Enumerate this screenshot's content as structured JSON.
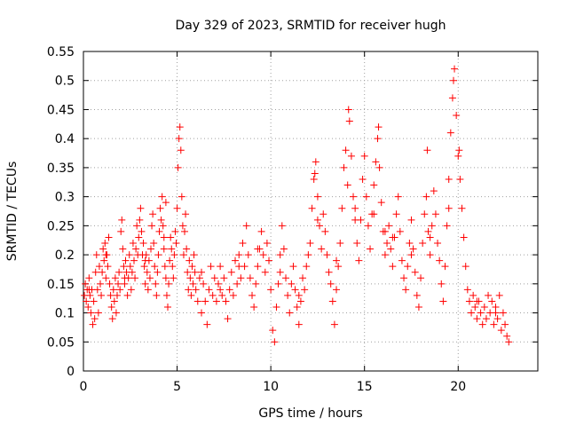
{
  "chart_data": {
    "type": "scatter",
    "title": "Day 329 of 2023, SRMTID for receiver hugh",
    "xlabel": "GPS time / hours",
    "ylabel": "SRMTID / TECUs",
    "xlim": [
      0,
      24.25
    ],
    "ylim": [
      0,
      0.55
    ],
    "xticks": [
      0,
      5,
      10,
      15,
      20
    ],
    "xtick_labels": [
      "0",
      "5",
      "10",
      "15",
      "20"
    ],
    "yticks": [
      0,
      0.05,
      0.1,
      0.15,
      0.2,
      0.25,
      0.3,
      0.35,
      0.4,
      0.45,
      0.5,
      0.55
    ],
    "ytick_labels": [
      "0",
      "0.05",
      "0.1",
      "0.15",
      "0.2",
      "0.25",
      "0.3",
      "0.35",
      "0.4",
      "0.45",
      "0.5",
      "0.55"
    ],
    "grid": true,
    "marker": "+",
    "marker_color": "#ff0000",
    "series": [
      {
        "name": "SRMTID",
        "points": [
          [
            0.05,
            0.13
          ],
          [
            0.1,
            0.15
          ],
          [
            0.15,
            0.12
          ],
          [
            0.2,
            0.14
          ],
          [
            0.25,
            0.11
          ],
          [
            0.3,
            0.16
          ],
          [
            0.35,
            0.13
          ],
          [
            0.4,
            0.1
          ],
          [
            0.45,
            0.14
          ],
          [
            0.5,
            0.08
          ],
          [
            0.55,
            0.12
          ],
          [
            0.6,
            0.09
          ],
          [
            0.65,
            0.17
          ],
          [
            0.7,
            0.2
          ],
          [
            0.75,
            0.14
          ],
          [
            0.8,
            0.1
          ],
          [
            0.85,
            0.18
          ],
          [
            0.9,
            0.15
          ],
          [
            0.95,
            0.13
          ],
          [
            1.0,
            0.17
          ],
          [
            1.05,
            0.21
          ],
          [
            1.1,
            0.19
          ],
          [
            1.15,
            0.22
          ],
          [
            1.2,
            0.16
          ],
          [
            1.25,
            0.2
          ],
          [
            1.3,
            0.18
          ],
          [
            1.35,
            0.23
          ],
          [
            1.4,
            0.15
          ],
          [
            1.45,
            0.13
          ],
          [
            1.5,
            0.11
          ],
          [
            1.55,
            0.09
          ],
          [
            1.6,
            0.14
          ],
          [
            1.65,
            0.12
          ],
          [
            1.7,
            0.16
          ],
          [
            1.75,
            0.1
          ],
          [
            1.8,
            0.13
          ],
          [
            1.85,
            0.15
          ],
          [
            1.9,
            0.17
          ],
          [
            1.95,
            0.14
          ],
          [
            2.0,
            0.24
          ],
          [
            2.05,
            0.26
          ],
          [
            2.1,
            0.21
          ],
          [
            2.15,
            0.18
          ],
          [
            2.2,
            0.15
          ],
          [
            2.25,
            0.19
          ],
          [
            2.3,
            0.17
          ],
          [
            2.35,
            0.13
          ],
          [
            2.4,
            0.16
          ],
          [
            2.45,
            0.2
          ],
          [
            2.5,
            0.18
          ],
          [
            2.55,
            0.14
          ],
          [
            2.6,
            0.17
          ],
          [
            2.65,
            0.22
          ],
          [
            2.7,
            0.19
          ],
          [
            2.75,
            0.16
          ],
          [
            2.8,
            0.21
          ],
          [
            2.85,
            0.25
          ],
          [
            2.9,
            0.2
          ],
          [
            2.95,
            0.23
          ],
          [
            3.0,
            0.26
          ],
          [
            3.05,
            0.28
          ],
          [
            3.1,
            0.24
          ],
          [
            3.15,
            0.2
          ],
          [
            3.2,
            0.22
          ],
          [
            3.25,
            0.18
          ],
          [
            3.3,
            0.15
          ],
          [
            3.35,
            0.2
          ],
          [
            3.4,
            0.17
          ],
          [
            3.45,
            0.14
          ],
          [
            3.5,
            0.19
          ],
          [
            3.55,
            0.16
          ],
          [
            3.6,
            0.21
          ],
          [
            3.65,
            0.25
          ],
          [
            3.7,
            0.27
          ],
          [
            3.75,
            0.22
          ],
          [
            3.8,
            0.18
          ],
          [
            3.85,
            0.15
          ],
          [
            3.9,
            0.13
          ],
          [
            3.95,
            0.17
          ],
          [
            4.0,
            0.2
          ],
          [
            4.05,
            0.24
          ],
          [
            4.1,
            0.28
          ],
          [
            4.15,
            0.26
          ],
          [
            4.2,
            0.3
          ],
          [
            4.25,
            0.25
          ],
          [
            4.3,
            0.21
          ],
          [
            4.35,
            0.18
          ],
          [
            4.4,
            0.16
          ],
          [
            4.45,
            0.13
          ],
          [
            4.5,
            0.11
          ],
          [
            4.55,
            0.15
          ],
          [
            4.6,
            0.19
          ],
          [
            4.65,
            0.23
          ],
          [
            4.7,
            0.21
          ],
          [
            4.75,
            0.18
          ],
          [
            4.8,
            0.16
          ],
          [
            4.85,
            0.2
          ],
          [
            4.9,
            0.24
          ],
          [
            4.95,
            0.22
          ],
          [
            5.0,
            0.28
          ],
          [
            5.05,
            0.35
          ],
          [
            5.1,
            0.4
          ],
          [
            5.15,
            0.42
          ],
          [
            5.2,
            0.38
          ],
          [
            5.25,
            0.3
          ],
          [
            5.3,
            0.25
          ],
          [
            5.35,
            0.2
          ],
          [
            5.4,
            0.24
          ],
          [
            5.45,
            0.27
          ],
          [
            5.5,
            0.21
          ],
          [
            5.55,
            0.17
          ],
          [
            5.6,
            0.14
          ],
          [
            5.65,
            0.19
          ],
          [
            5.7,
            0.16
          ],
          [
            5.75,
            0.13
          ],
          [
            5.8,
            0.18
          ],
          [
            5.85,
            0.15
          ],
          [
            5.9,
            0.2
          ],
          [
            5.95,
            0.17
          ],
          [
            6.0,
            0.14
          ],
          [
            6.1,
            0.12
          ],
          [
            6.2,
            0.16
          ],
          [
            6.3,
            0.1
          ],
          [
            6.4,
            0.15
          ],
          [
            6.5,
            0.12
          ],
          [
            6.6,
            0.08
          ],
          [
            6.7,
            0.14
          ],
          [
            6.8,
            0.18
          ],
          [
            6.9,
            0.13
          ],
          [
            7.0,
            0.16
          ],
          [
            7.1,
            0.12
          ],
          [
            7.2,
            0.15
          ],
          [
            7.3,
            0.18
          ],
          [
            7.4,
            0.13
          ],
          [
            7.5,
            0.16
          ],
          [
            7.6,
            0.12
          ],
          [
            7.7,
            0.09
          ],
          [
            7.8,
            0.14
          ],
          [
            7.9,
            0.17
          ],
          [
            8.0,
            0.13
          ],
          [
            8.1,
            0.19
          ],
          [
            8.2,
            0.15
          ],
          [
            8.3,
            0.2
          ],
          [
            8.4,
            0.16
          ],
          [
            8.5,
            0.22
          ],
          [
            8.6,
            0.18
          ],
          [
            8.7,
            0.25
          ],
          [
            8.8,
            0.2
          ],
          [
            8.9,
            0.16
          ],
          [
            9.0,
            0.13
          ],
          [
            9.1,
            0.11
          ],
          [
            9.2,
            0.15
          ],
          [
            9.3,
            0.18
          ],
          [
            9.4,
            0.21
          ],
          [
            9.5,
            0.24
          ],
          [
            9.6,
            0.2
          ],
          [
            9.7,
            0.17
          ],
          [
            9.8,
            0.22
          ],
          [
            9.9,
            0.19
          ],
          [
            10.0,
            0.14
          ],
          [
            10.1,
            0.07
          ],
          [
            10.2,
            0.05
          ],
          [
            10.3,
            0.11
          ],
          [
            10.4,
            0.15
          ],
          [
            10.5,
            0.2
          ],
          [
            10.6,
            0.25
          ],
          [
            10.7,
            0.21
          ],
          [
            10.8,
            0.16
          ],
          [
            10.9,
            0.13
          ],
          [
            11.0,
            0.1
          ],
          [
            11.1,
            0.15
          ],
          [
            11.2,
            0.18
          ],
          [
            11.3,
            0.14
          ],
          [
            11.4,
            0.11
          ],
          [
            11.5,
            0.08
          ],
          [
            11.6,
            0.12
          ],
          [
            11.7,
            0.16
          ],
          [
            11.8,
            0.14
          ],
          [
            11.9,
            0.18
          ],
          [
            12.0,
            0.2
          ],
          [
            12.1,
            0.22
          ],
          [
            12.2,
            0.28
          ],
          [
            12.3,
            0.33
          ],
          [
            12.4,
            0.36
          ],
          [
            12.5,
            0.3
          ],
          [
            12.6,
            0.25
          ],
          [
            12.7,
            0.21
          ],
          [
            12.8,
            0.27
          ],
          [
            12.9,
            0.24
          ],
          [
            13.0,
            0.2
          ],
          [
            13.1,
            0.17
          ],
          [
            13.2,
            0.15
          ],
          [
            13.3,
            0.12
          ],
          [
            13.4,
            0.08
          ],
          [
            13.5,
            0.14
          ],
          [
            13.6,
            0.18
          ],
          [
            13.7,
            0.22
          ],
          [
            13.8,
            0.28
          ],
          [
            13.9,
            0.35
          ],
          [
            14.0,
            0.38
          ],
          [
            14.1,
            0.32
          ],
          [
            14.2,
            0.43
          ],
          [
            14.3,
            0.37
          ],
          [
            14.4,
            0.3
          ],
          [
            14.5,
            0.26
          ],
          [
            14.6,
            0.22
          ],
          [
            14.7,
            0.19
          ],
          [
            14.8,
            0.26
          ],
          [
            14.9,
            0.33
          ],
          [
            15.0,
            0.37
          ],
          [
            15.1,
            0.3
          ],
          [
            15.2,
            0.25
          ],
          [
            15.3,
            0.21
          ],
          [
            15.4,
            0.27
          ],
          [
            15.5,
            0.32
          ],
          [
            15.6,
            0.36
          ],
          [
            15.7,
            0.4
          ],
          [
            15.8,
            0.35
          ],
          [
            15.9,
            0.29
          ],
          [
            16.0,
            0.24
          ],
          [
            16.1,
            0.2
          ],
          [
            16.2,
            0.22
          ],
          [
            16.3,
            0.25
          ],
          [
            16.4,
            0.21
          ],
          [
            16.5,
            0.18
          ],
          [
            16.6,
            0.23
          ],
          [
            16.7,
            0.27
          ],
          [
            16.8,
            0.3
          ],
          [
            16.9,
            0.24
          ],
          [
            17.0,
            0.19
          ],
          [
            17.1,
            0.16
          ],
          [
            17.2,
            0.14
          ],
          [
            17.3,
            0.18
          ],
          [
            17.4,
            0.22
          ],
          [
            17.5,
            0.26
          ],
          [
            17.6,
            0.21
          ],
          [
            17.7,
            0.17
          ],
          [
            17.8,
            0.13
          ],
          [
            17.9,
            0.11
          ],
          [
            18.0,
            0.16
          ],
          [
            18.1,
            0.22
          ],
          [
            18.2,
            0.27
          ],
          [
            18.3,
            0.3
          ],
          [
            18.4,
            0.24
          ],
          [
            18.5,
            0.2
          ],
          [
            18.6,
            0.25
          ],
          [
            18.7,
            0.31
          ],
          [
            18.8,
            0.27
          ],
          [
            18.9,
            0.22
          ],
          [
            19.0,
            0.19
          ],
          [
            19.1,
            0.15
          ],
          [
            19.2,
            0.12
          ],
          [
            19.3,
            0.18
          ],
          [
            19.4,
            0.25
          ],
          [
            19.5,
            0.33
          ],
          [
            19.6,
            0.41
          ],
          [
            19.7,
            0.47
          ],
          [
            19.8,
            0.52
          ],
          [
            19.9,
            0.44
          ],
          [
            20.0,
            0.37
          ],
          [
            20.1,
            0.33
          ],
          [
            20.2,
            0.28
          ],
          [
            20.3,
            0.23
          ],
          [
            20.4,
            0.18
          ],
          [
            20.5,
            0.14
          ],
          [
            20.6,
            0.12
          ],
          [
            20.7,
            0.1
          ],
          [
            20.8,
            0.13
          ],
          [
            20.9,
            0.11
          ],
          [
            21.0,
            0.09
          ],
          [
            21.1,
            0.12
          ],
          [
            21.2,
            0.1
          ],
          [
            21.3,
            0.08
          ],
          [
            21.4,
            0.11
          ],
          [
            21.5,
            0.09
          ],
          [
            21.6,
            0.13
          ],
          [
            21.7,
            0.1
          ],
          [
            21.8,
            0.12
          ],
          [
            21.9,
            0.08
          ],
          [
            22.0,
            0.11
          ],
          [
            22.1,
            0.09
          ],
          [
            22.2,
            0.13
          ],
          [
            22.3,
            0.07
          ],
          [
            22.4,
            0.1
          ],
          [
            22.5,
            0.08
          ],
          [
            22.6,
            0.06
          ],
          [
            22.7,
            0.05
          ],
          [
            0.3,
            0.14
          ],
          [
            1.2,
            0.2
          ],
          [
            2.2,
            0.16
          ],
          [
            3.3,
            0.19
          ],
          [
            4.3,
            0.23
          ],
          [
            6.3,
            0.17
          ],
          [
            7.3,
            0.14
          ],
          [
            8.3,
            0.18
          ],
          [
            9.3,
            0.21
          ],
          [
            10.5,
            0.17
          ],
          [
            11.5,
            0.13
          ],
          [
            12.5,
            0.26
          ],
          [
            13.5,
            0.19
          ],
          [
            14.5,
            0.28
          ],
          [
            15.5,
            0.27
          ],
          [
            16.5,
            0.23
          ],
          [
            17.5,
            0.2
          ],
          [
            18.5,
            0.23
          ],
          [
            19.5,
            0.28
          ],
          [
            21.0,
            0.12
          ],
          [
            22.0,
            0.1
          ],
          [
            14.15,
            0.45
          ],
          [
            15.75,
            0.42
          ],
          [
            16.1,
            0.24
          ],
          [
            12.35,
            0.34
          ],
          [
            19.75,
            0.5
          ],
          [
            20.05,
            0.38
          ],
          [
            18.35,
            0.38
          ],
          [
            4.4,
            0.29
          ]
        ]
      }
    ]
  }
}
